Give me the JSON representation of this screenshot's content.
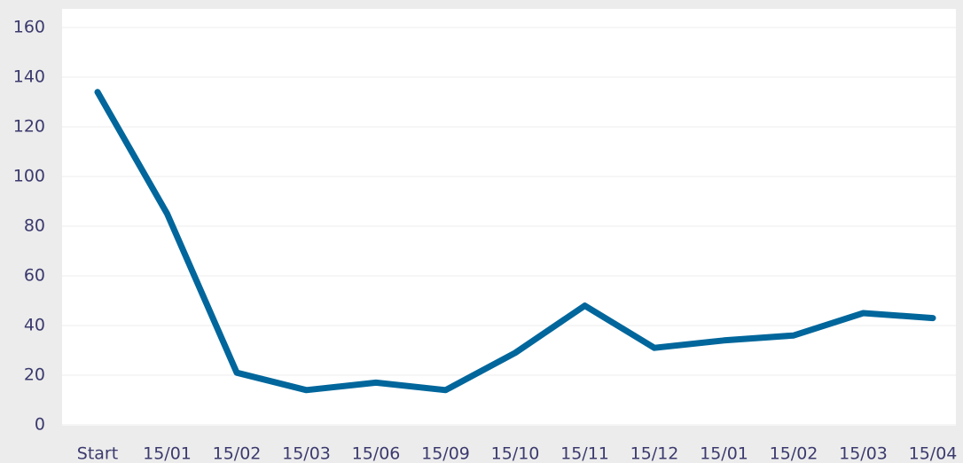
{
  "chart_data": {
    "type": "line",
    "categories": [
      "Start",
      "15/01",
      "15/02",
      "15/03",
      "15/06",
      "15/09",
      "15/10",
      "15/11",
      "15/12",
      "15/01",
      "15/02",
      "15/03",
      "15/04"
    ],
    "values": [
      134,
      85,
      21,
      14,
      17,
      14,
      29,
      48,
      31,
      34,
      36,
      45,
      43
    ],
    "color": "#00669b",
    "ylim": [
      0,
      160
    ],
    "yticks": [
      0,
      20,
      40,
      60,
      80,
      100,
      120,
      140,
      160
    ],
    "grid": true
  }
}
